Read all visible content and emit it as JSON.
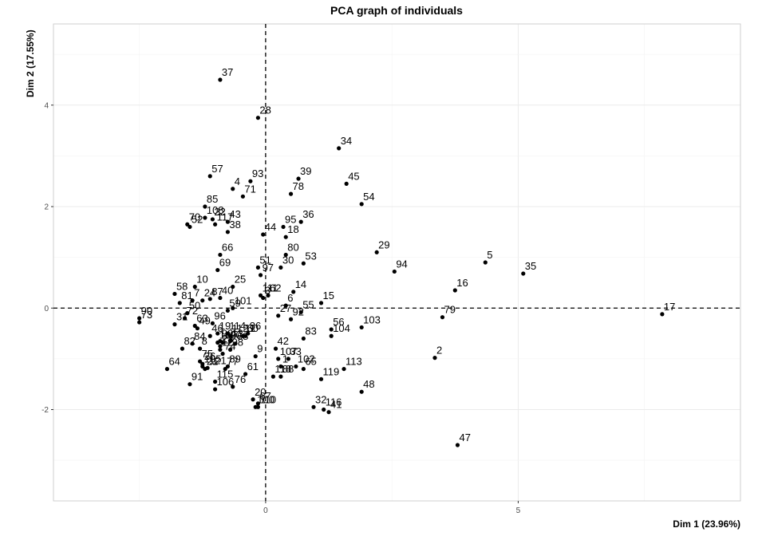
{
  "chart_data": {
    "type": "scatter",
    "title": "PCA graph of individuals",
    "xlabel": "Dim 1 (23.96%)",
    "ylabel": "Dim 2 (17.55%)",
    "xlim": [
      -4.2,
      9.4
    ],
    "ylim": [
      -3.8,
      5.6
    ],
    "xticks": [
      0,
      5
    ],
    "yticks": [
      -2,
      0,
      2,
      4
    ],
    "grid": true,
    "reference_lines": {
      "x": 0,
      "y": 0,
      "style": "dashed"
    },
    "point_color": "#000000",
    "points": [
      {
        "label": "1",
        "x": 0.3,
        "y": -1.15
      },
      {
        "label": "2",
        "x": 3.35,
        "y": -0.98
      },
      {
        "label": "3",
        "x": -0.05,
        "y": 0.2
      },
      {
        "label": "4",
        "x": -0.65,
        "y": 2.35
      },
      {
        "label": "5",
        "x": 4.35,
        "y": 0.9
      },
      {
        "label": "6",
        "x": 0.4,
        "y": 0.05
      },
      {
        "label": "7",
        "x": -1.45,
        "y": 0.15
      },
      {
        "label": "8",
        "x": -1.3,
        "y": -0.8
      },
      {
        "label": "9",
        "x": -0.2,
        "y": -0.95
      },
      {
        "label": "10",
        "x": -1.4,
        "y": 0.42
      },
      {
        "label": "11",
        "x": -0.45,
        "y": -0.55
      },
      {
        "label": "12",
        "x": -0.9,
        "y": -0.82
      },
      {
        "label": "13",
        "x": -0.7,
        "y": -0.65
      },
      {
        "label": "14",
        "x": 0.55,
        "y": 0.32
      },
      {
        "label": "15",
        "x": 1.1,
        "y": 0.1
      },
      {
        "label": "16",
        "x": 3.75,
        "y": 0.35
      },
      {
        "label": "17",
        "x": 7.85,
        "y": -0.12
      },
      {
        "label": "18",
        "x": 0.4,
        "y": 1.4
      },
      {
        "label": "19",
        "x": -0.95,
        "y": -0.5
      },
      {
        "label": "20",
        "x": -0.25,
        "y": -1.8
      },
      {
        "label": "21",
        "x": -1.2,
        "y": -1.2
      },
      {
        "label": "22",
        "x": -1.05,
        "y": 1.75
      },
      {
        "label": "23",
        "x": -0.9,
        "y": -0.75
      },
      {
        "label": "24",
        "x": -1.25,
        "y": 0.15
      },
      {
        "label": "25",
        "x": -0.65,
        "y": 0.42
      },
      {
        "label": "26",
        "x": -1.25,
        "y": -1.1
      },
      {
        "label": "27",
        "x": 0.25,
        "y": -0.15
      },
      {
        "label": "28",
        "x": -0.15,
        "y": 3.75
      },
      {
        "label": "29",
        "x": 2.2,
        "y": 1.1
      },
      {
        "label": "30",
        "x": 0.3,
        "y": 0.8
      },
      {
        "label": "31",
        "x": -1.8,
        "y": -0.32
      },
      {
        "label": "32",
        "x": 0.95,
        "y": -1.95
      },
      {
        "label": "33",
        "x": 0.45,
        "y": -1.0
      },
      {
        "label": "34",
        "x": 1.45,
        "y": 3.15
      },
      {
        "label": "35",
        "x": 5.1,
        "y": 0.68
      },
      {
        "label": "36",
        "x": 0.7,
        "y": 1.7
      },
      {
        "label": "37",
        "x": -0.9,
        "y": 4.5
      },
      {
        "label": "38",
        "x": -0.75,
        "y": 1.5
      },
      {
        "label": "39",
        "x": 0.65,
        "y": 2.55
      },
      {
        "label": "40",
        "x": -0.9,
        "y": 0.2
      },
      {
        "label": "41",
        "x": 1.25,
        "y": -2.05
      },
      {
        "label": "42",
        "x": 0.2,
        "y": -0.8
      },
      {
        "label": "43",
        "x": -0.75,
        "y": 1.7
      },
      {
        "label": "44",
        "x": -0.05,
        "y": 1.45
      },
      {
        "label": "45",
        "x": 1.6,
        "y": 2.45
      },
      {
        "label": "46",
        "x": -1.1,
        "y": -0.55
      },
      {
        "label": "47",
        "x": 3.8,
        "y": -2.7
      },
      {
        "label": "48",
        "x": 1.9,
        "y": -1.65
      },
      {
        "label": "49",
        "x": -1.35,
        "y": -0.4
      },
      {
        "label": "50",
        "x": -1.55,
        "y": -0.1
      },
      {
        "label": "51",
        "x": -0.15,
        "y": 0.8
      },
      {
        "label": "52",
        "x": -1.5,
        "y": 1.6
      },
      {
        "label": "53",
        "x": 0.75,
        "y": 0.88
      },
      {
        "label": "54",
        "x": 1.9,
        "y": 2.05
      },
      {
        "label": "55",
        "x": 0.7,
        "y": -0.08
      },
      {
        "label": "56",
        "x": 1.3,
        "y": -0.42
      },
      {
        "label": "57",
        "x": -1.1,
        "y": 2.6
      },
      {
        "label": "58",
        "x": -1.8,
        "y": 0.28
      },
      {
        "label": "59",
        "x": -0.75,
        "y": -0.05
      },
      {
        "label": "60",
        "x": -0.4,
        "y": -0.55
      },
      {
        "label": "61",
        "x": -0.4,
        "y": -1.3
      },
      {
        "label": "62",
        "x": 0.05,
        "y": 0.25
      },
      {
        "label": "63",
        "x": -1.4,
        "y": -0.35
      },
      {
        "label": "64",
        "x": -1.95,
        "y": -1.2
      },
      {
        "label": "65",
        "x": 0.75,
        "y": -1.2
      },
      {
        "label": "66",
        "x": -0.9,
        "y": 1.05
      },
      {
        "label": "67",
        "x": -0.15,
        "y": -1.88
      },
      {
        "label": "68",
        "x": -0.6,
        "y": -0.7
      },
      {
        "label": "69",
        "x": -0.95,
        "y": 0.75
      },
      {
        "label": "70",
        "x": -1.55,
        "y": 1.65
      },
      {
        "label": "71",
        "x": -0.45,
        "y": 2.2
      },
      {
        "label": "72",
        "x": -1.6,
        "y": -0.2
      },
      {
        "label": "73",
        "x": -2.5,
        "y": -0.28
      },
      {
        "label": "74",
        "x": -0.85,
        "y": -0.9
      },
      {
        "label": "75",
        "x": -1.3,
        "y": -1.05
      },
      {
        "label": "76",
        "x": -0.65,
        "y": -1.55
      },
      {
        "label": "77",
        "x": -0.8,
        "y": -1.2
      },
      {
        "label": "78",
        "x": 0.5,
        "y": 2.25
      },
      {
        "label": "79",
        "x": 3.5,
        "y": -0.18
      },
      {
        "label": "80",
        "x": 0.4,
        "y": 1.05
      },
      {
        "label": "81",
        "x": -1.7,
        "y": 0.1
      },
      {
        "label": "82",
        "x": -1.65,
        "y": -0.8
      },
      {
        "label": "83",
        "x": 0.75,
        "y": -0.6
      },
      {
        "label": "84",
        "x": -1.45,
        "y": -0.7
      },
      {
        "label": "85",
        "x": -1.2,
        "y": 2.0
      },
      {
        "label": "86",
        "x": -0.35,
        "y": -0.5
      },
      {
        "label": "87",
        "x": -1.1,
        "y": 0.18
      },
      {
        "label": "88",
        "x": 0.3,
        "y": -1.35
      },
      {
        "label": "89",
        "x": -0.75,
        "y": -1.15
      },
      {
        "label": "90",
        "x": -2.5,
        "y": -0.2
      },
      {
        "label": "91",
        "x": -1.5,
        "y": -1.5
      },
      {
        "label": "92",
        "x": 0.5,
        "y": -0.22
      },
      {
        "label": "93",
        "x": -0.3,
        "y": 2.5
      },
      {
        "label": "94",
        "x": 2.55,
        "y": 0.72
      },
      {
        "label": "95",
        "x": 0.35,
        "y": 1.6
      },
      {
        "label": "96",
        "x": -1.05,
        "y": -0.3
      },
      {
        "label": "97",
        "x": -0.1,
        "y": 0.65
      },
      {
        "label": "98",
        "x": -0.7,
        "y": -0.82
      },
      {
        "label": "99",
        "x": -0.9,
        "y": -0.65
      },
      {
        "label": "100",
        "x": -0.2,
        "y": -1.95
      },
      {
        "label": "101",
        "x": -0.65,
        "y": 0.0
      },
      {
        "label": "102",
        "x": 0.6,
        "y": -1.15
      },
      {
        "label": "103",
        "x": 1.9,
        "y": -0.38
      },
      {
        "label": "104",
        "x": 1.3,
        "y": -0.55
      },
      {
        "label": "105",
        "x": -1.25,
        "y": -1.15
      },
      {
        "label": "106",
        "x": -1.0,
        "y": -1.6
      },
      {
        "label": "107",
        "x": 0.25,
        "y": -1.0
      },
      {
        "label": "108",
        "x": -1.2,
        "y": 1.78
      },
      {
        "label": "109",
        "x": -0.95,
        "y": -0.68
      },
      {
        "label": "110",
        "x": -0.15,
        "y": -1.95
      },
      {
        "label": "111",
        "x": -0.1,
        "y": 0.25
      },
      {
        "label": "112",
        "x": -0.7,
        "y": -0.55
      },
      {
        "label": "113",
        "x": 1.55,
        "y": -1.2
      },
      {
        "label": "114",
        "x": -0.75,
        "y": -0.5
      },
      {
        "label": "115",
        "x": -1.0,
        "y": -1.45
      },
      {
        "label": "116",
        "x": 1.15,
        "y": -2.0
      },
      {
        "label": "117",
        "x": -1.0,
        "y": 1.65
      },
      {
        "label": "118",
        "x": 0.15,
        "y": -1.35
      },
      {
        "label": "119",
        "x": 1.1,
        "y": -1.4
      },
      {
        "label": "120",
        "x": -0.85,
        "y": -0.68
      },
      {
        "label": "121",
        "x": -1.15,
        "y": -1.18
      }
    ]
  }
}
